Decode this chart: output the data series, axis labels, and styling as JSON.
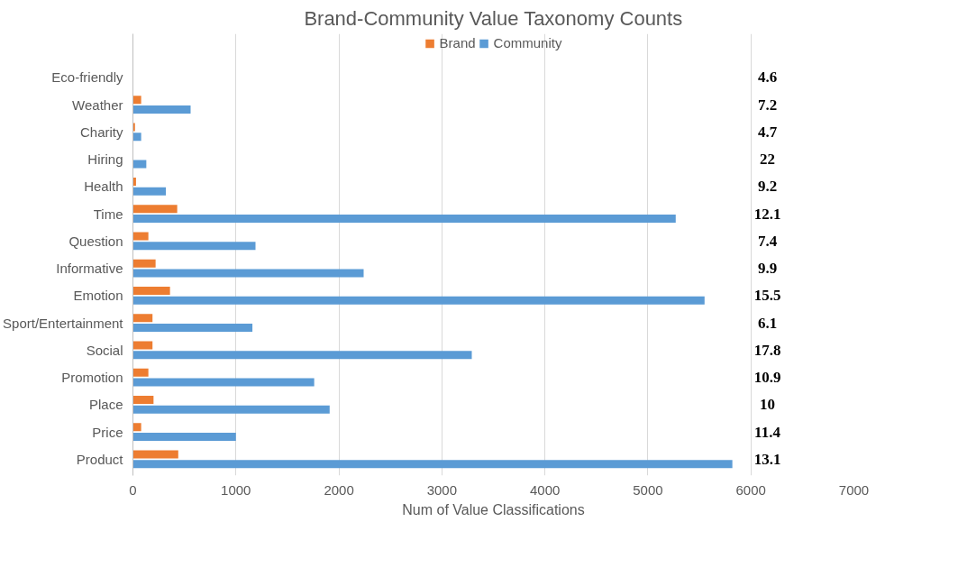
{
  "chart_data": {
    "type": "bar",
    "orientation": "horizontal",
    "title": "Brand-Community Value Taxonomy Counts",
    "xlabel": "Num of Value Classifications",
    "categories": [
      "Eco-friendly",
      "Weather",
      "Charity",
      "Hiring",
      "Health",
      "Time",
      "Question",
      "Informative",
      "Emotion",
      "Sport/Entertainment",
      "Social",
      "Promotion",
      "Place",
      "Price",
      "Product"
    ],
    "series": [
      {
        "name": "Brand",
        "color": "#ed7d31",
        "values": [
          0,
          80,
          20,
          0,
          30,
          430,
          150,
          220,
          360,
          190,
          190,
          150,
          200,
          80,
          440
        ]
      },
      {
        "name": "Community",
        "color": "#5b9bd5",
        "values": [
          0,
          560,
          80,
          130,
          320,
          5270,
          1190,
          2240,
          5550,
          1160,
          3290,
          1760,
          1910,
          1000,
          5820
        ]
      }
    ],
    "xlim": [
      0,
      7000
    ],
    "xticks": [
      0,
      1000,
      2000,
      3000,
      4000,
      5000,
      6000,
      7000
    ],
    "grid": "x",
    "legend": "top",
    "annotations": [
      "4.6",
      "7.2",
      "4.7",
      "22",
      "9.2",
      "12.1",
      "7.4",
      "9.9",
      "15.5",
      "6.1",
      "17.8",
      "10.9",
      "10",
      "11.4",
      "13.1"
    ]
  }
}
